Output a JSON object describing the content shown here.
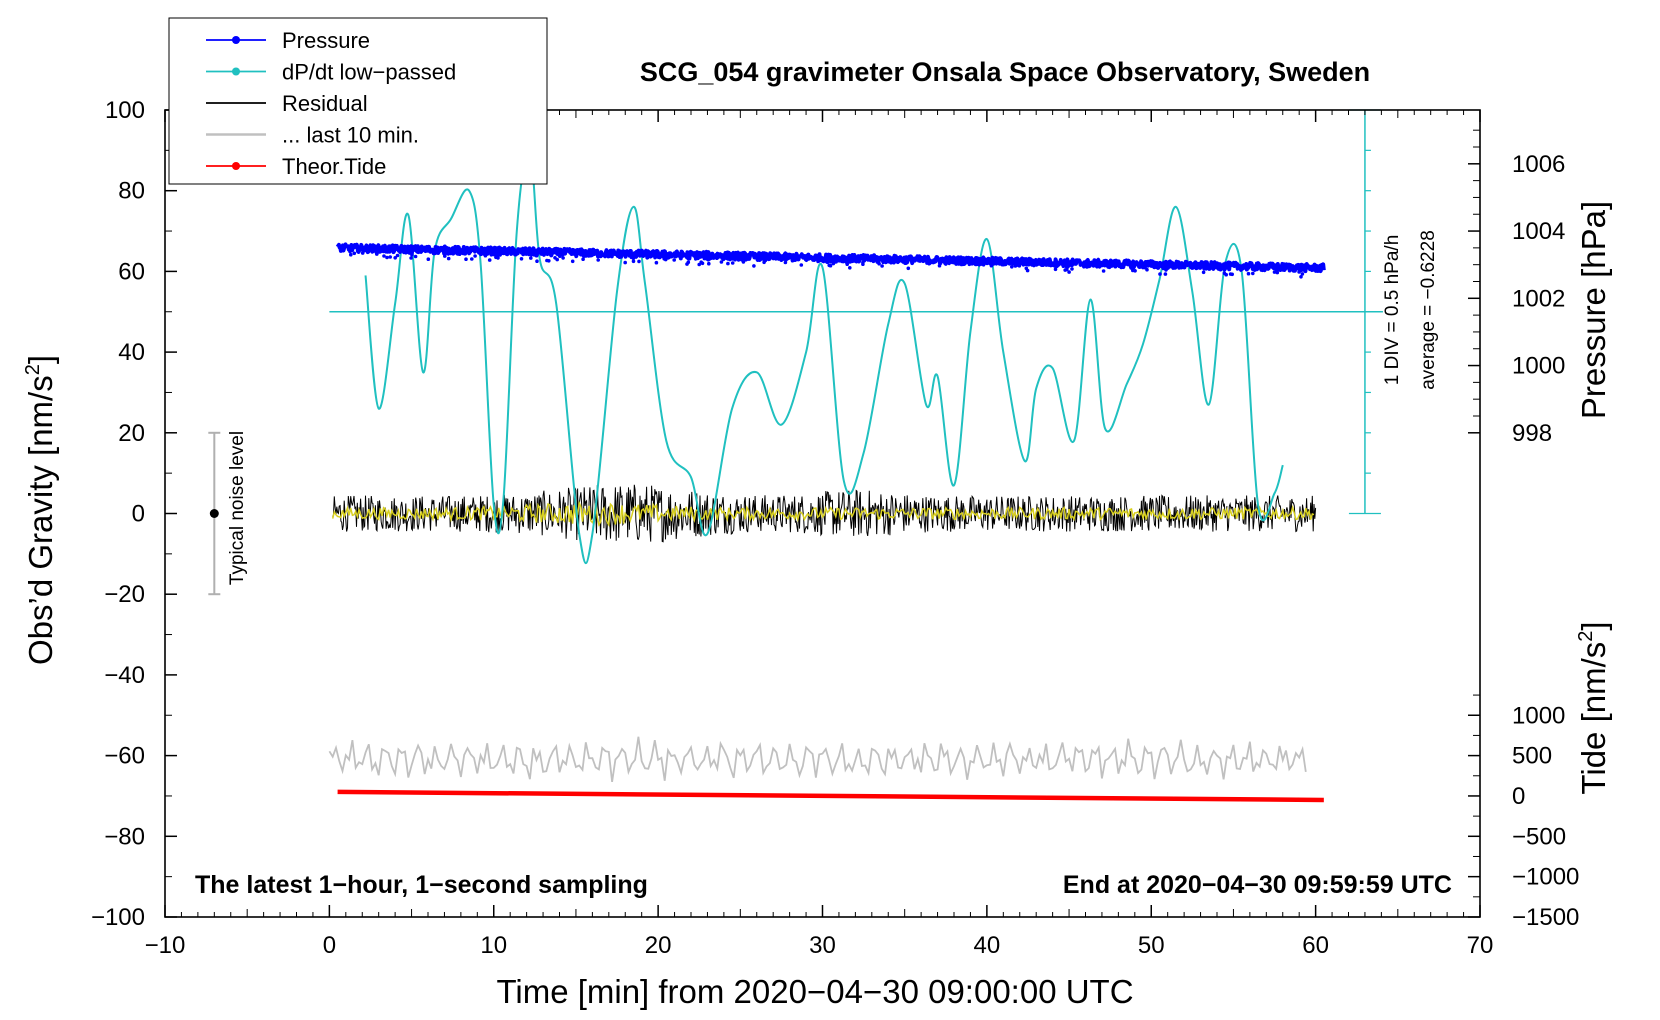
{
  "chart_data": {
    "type": "line",
    "title": "SCG_054 gravimeter Onsala Space Observatory, Sweden",
    "xlabel": "Time [min] from 2020−04−30 09:00:00 UTC",
    "xlim": [
      -10,
      70
    ],
    "x_ticks": [
      -10,
      0,
      10,
      20,
      30,
      40,
      50,
      60,
      70
    ],
    "x_tick_labels": [
      "−10",
      "0",
      "10",
      "20",
      "30",
      "40",
      "50",
      "60",
      "70"
    ],
    "left_axis": {
      "label": "Obs’d Gravity [nm/s",
      "label_sup": "2",
      "label_end": "]",
      "ylim": [
        -100,
        100
      ],
      "ticks": [
        -100,
        -80,
        -60,
        -40,
        -20,
        0,
        20,
        40,
        60,
        80,
        100
      ],
      "tick_labels": [
        "−100",
        "−80",
        "−60",
        "−40",
        "−20",
        "0",
        "20",
        "40",
        "60",
        "80",
        "100"
      ]
    },
    "pressure_axis": {
      "label": "Pressure [hPa]",
      "ticks": [
        998,
        1000,
        1002,
        1004,
        1006
      ],
      "tick_labels": [
        "998",
        "1000",
        "1002",
        "1004",
        "1006"
      ],
      "gravity_at_998": 20,
      "gravity_per_hpa": 8.333
    },
    "tide_axis": {
      "label": "Tide [nm/s",
      "label_sup": "2",
      "label_end": "]",
      "ticks": [
        -1500,
        -1000,
        -500,
        0,
        500,
        1000
      ],
      "tick_labels": [
        "−1500",
        "−1000",
        "−500",
        "0",
        "500",
        "1000"
      ],
      "gravity_at_minus1500": -100,
      "gravity_per_unit": 0.02
    },
    "dpdt_scale": {
      "baseline_gravity": 50,
      "zero_gravity": 0,
      "top_gravity": 100,
      "label1": "1 DIV = 0.5 hPa/h",
      "label2": "average = −0.6228"
    },
    "legend": [
      {
        "label": "Pressure",
        "color": "#0000ff",
        "marker": true
      },
      {
        "label": "dP/dt low−passed",
        "color": "#20c0c0",
        "marker": true
      },
      {
        "label": "Residual",
        "color": "#000000",
        "marker": false
      },
      {
        "label": "... last 10 min.",
        "color": "#c0c0c0",
        "marker": false
      },
      {
        "label": "Theor.Tide",
        "color": "#ff0000",
        "marker": true
      }
    ],
    "series": [
      {
        "name": "Pressure",
        "unit": "hPa",
        "x_start": 0.5,
        "x_end": 60.5,
        "start": 1003.5,
        "end": 1002.9
      },
      {
        "name": "dP/dt low−passed",
        "unit": "nm/s2 equivalent",
        "x": [
          2.2,
          3.0,
          4.0,
          4.8,
          5.7,
          6.4,
          7.4,
          8.5,
          9.2,
          10.0,
          10.6,
          11.4,
          12.2,
          12.8,
          13.8,
          15.2,
          16.0,
          17.5,
          18.5,
          19.2,
          20.5,
          22.0,
          23.0,
          24.5,
          26.0,
          27.5,
          29.0,
          30.0,
          31.3,
          32.5,
          34.0,
          35.0,
          36.3,
          37.0,
          38.0,
          39.0,
          40.0,
          41.0,
          42.3,
          43.0,
          44.0,
          45.3,
          46.3,
          47.2,
          48.5,
          49.5,
          50.5,
          51.5,
          52.5,
          53.5,
          54.5,
          55.5,
          56.5,
          57.5,
          58.0
        ],
        "values": [
          59,
          26,
          52,
          74,
          35,
          65,
          73,
          80,
          62,
          2,
          4,
          70,
          90,
          63,
          52,
          -5,
          -5,
          55,
          76,
          57,
          18,
          9,
          -5,
          26,
          35,
          22,
          40,
          61,
          8,
          15,
          47,
          57,
          27,
          34,
          7,
          45,
          68,
          40,
          13,
          31,
          36,
          18,
          53,
          21,
          32,
          42,
          58,
          76,
          55,
          27,
          62,
          60,
          2,
          5,
          12
        ]
      },
      {
        "name": "Residual",
        "unit": "nm/s2",
        "x_start": 0.2,
        "x_end": 60,
        "center": 0,
        "amplitude": 6
      },
      {
        "name": "... last 10 min.",
        "unit": "nm/s2",
        "x_start": 0,
        "x_end": 59.6,
        "center": -61,
        "amplitude": 5
      },
      {
        "name": "Theor.Tide",
        "unit": "nm/s2",
        "x": [
          0.5,
          60.5
        ],
        "values": [
          50,
          -50
        ]
      }
    ],
    "annotations": {
      "noise_label": "Typical noise level",
      "noise_center": 0,
      "noise_range": [
        -20,
        20
      ],
      "noise_x": -7,
      "bottom_left": "The latest 1−hour, 1−second sampling",
      "bottom_right": "End at 2020−04−30 09:59:59 UTC"
    }
  }
}
